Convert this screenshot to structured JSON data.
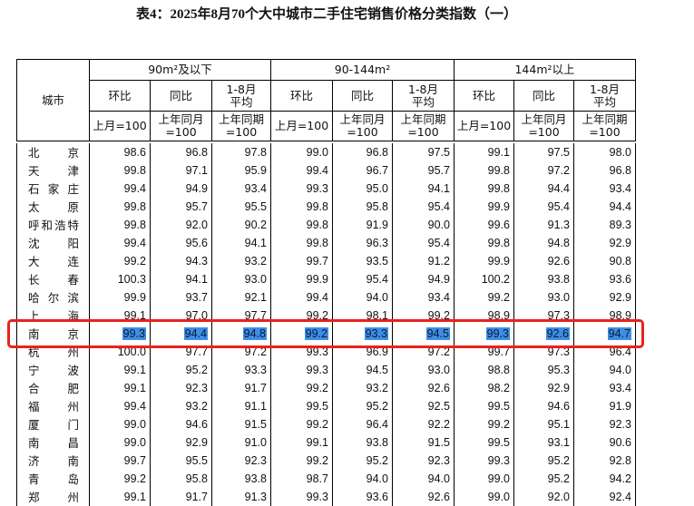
{
  "title": "表4：2025年8月70个大中城市二手住宅销售价格分类指数（一）",
  "table": {
    "city_header": "城市",
    "groups": [
      "90m²及以下",
      "90-144m²",
      "144m²以上"
    ],
    "columns": [
      {
        "name": "环比",
        "base": "上月=100"
      },
      {
        "name": "同比",
        "base": "上年同月=100"
      },
      {
        "name": "1-8月平均",
        "base": "上年同期=100"
      }
    ],
    "rows": [
      [
        "北京",
        "98.6",
        "96.8",
        "97.8",
        "99.0",
        "96.8",
        "97.5",
        "99.1",
        "97.5",
        "98.0"
      ],
      [
        "天津",
        "99.8",
        "97.1",
        "95.9",
        "99.4",
        "96.7",
        "95.7",
        "99.8",
        "97.2",
        "96.8"
      ],
      [
        "石家庄",
        "99.4",
        "94.9",
        "93.4",
        "99.3",
        "95.0",
        "94.1",
        "99.8",
        "94.4",
        "93.4"
      ],
      [
        "太原",
        "99.8",
        "95.7",
        "95.5",
        "99.8",
        "95.8",
        "95.4",
        "99.9",
        "95.4",
        "94.4"
      ],
      [
        "呼和浩特",
        "99.8",
        "92.0",
        "90.2",
        "99.8",
        "91.9",
        "90.0",
        "99.6",
        "91.3",
        "89.3"
      ],
      [
        "沈阳",
        "99.4",
        "95.6",
        "94.1",
        "99.8",
        "96.3",
        "95.4",
        "99.8",
        "94.8",
        "92.9"
      ],
      [
        "大连",
        "99.2",
        "94.3",
        "93.2",
        "99.7",
        "93.5",
        "91.2",
        "99.9",
        "92.6",
        "90.8"
      ],
      [
        "长春",
        "100.3",
        "94.1",
        "93.0",
        "99.9",
        "95.4",
        "94.9",
        "100.2",
        "93.8",
        "93.6"
      ],
      [
        "哈尔滨",
        "99.9",
        "93.7",
        "92.1",
        "99.4",
        "94.0",
        "93.4",
        "99.2",
        "93.0",
        "92.9"
      ],
      [
        "上海",
        "99.1",
        "97.0",
        "97.7",
        "99.2",
        "98.1",
        "99.2",
        "98.9",
        "97.3",
        "98.9"
      ],
      [
        "南京",
        "99.3",
        "94.4",
        "94.8",
        "99.2",
        "93.3",
        "94.5",
        "99.3",
        "92.6",
        "94.7"
      ],
      [
        "杭州",
        "100.0",
        "97.7",
        "97.2",
        "99.3",
        "96.9",
        "97.2",
        "99.7",
        "97.3",
        "96.4"
      ],
      [
        "宁波",
        "99.1",
        "95.2",
        "93.3",
        "99.3",
        "94.5",
        "93.0",
        "98.8",
        "95.3",
        "94.0"
      ],
      [
        "合肥",
        "99.1",
        "92.3",
        "91.7",
        "99.2",
        "93.2",
        "92.6",
        "98.2",
        "92.9",
        "93.4"
      ],
      [
        "福州",
        "99.4",
        "93.2",
        "91.1",
        "99.5",
        "95.2",
        "92.5",
        "99.5",
        "94.6",
        "91.9"
      ],
      [
        "厦门",
        "99.0",
        "94.6",
        "91.5",
        "99.2",
        "96.4",
        "92.2",
        "99.2",
        "95.1",
        "92.3"
      ],
      [
        "南昌",
        "99.0",
        "92.9",
        "91.0",
        "99.1",
        "93.8",
        "91.5",
        "99.5",
        "93.1",
        "90.6"
      ],
      [
        "济南",
        "99.7",
        "95.5",
        "92.3",
        "99.2",
        "95.2",
        "92.3",
        "99.3",
        "95.2",
        "92.8"
      ],
      [
        "青岛",
        "99.2",
        "95.8",
        "93.8",
        "98.7",
        "94.0",
        "94.0",
        "99.0",
        "95.2",
        "94.2"
      ],
      [
        "郑州",
        "99.1",
        "91.7",
        "91.3",
        "99.3",
        "93.6",
        "92.6",
        "99.0",
        "92.0",
        "92.4"
      ]
    ],
    "highlighted_row": 10
  }
}
